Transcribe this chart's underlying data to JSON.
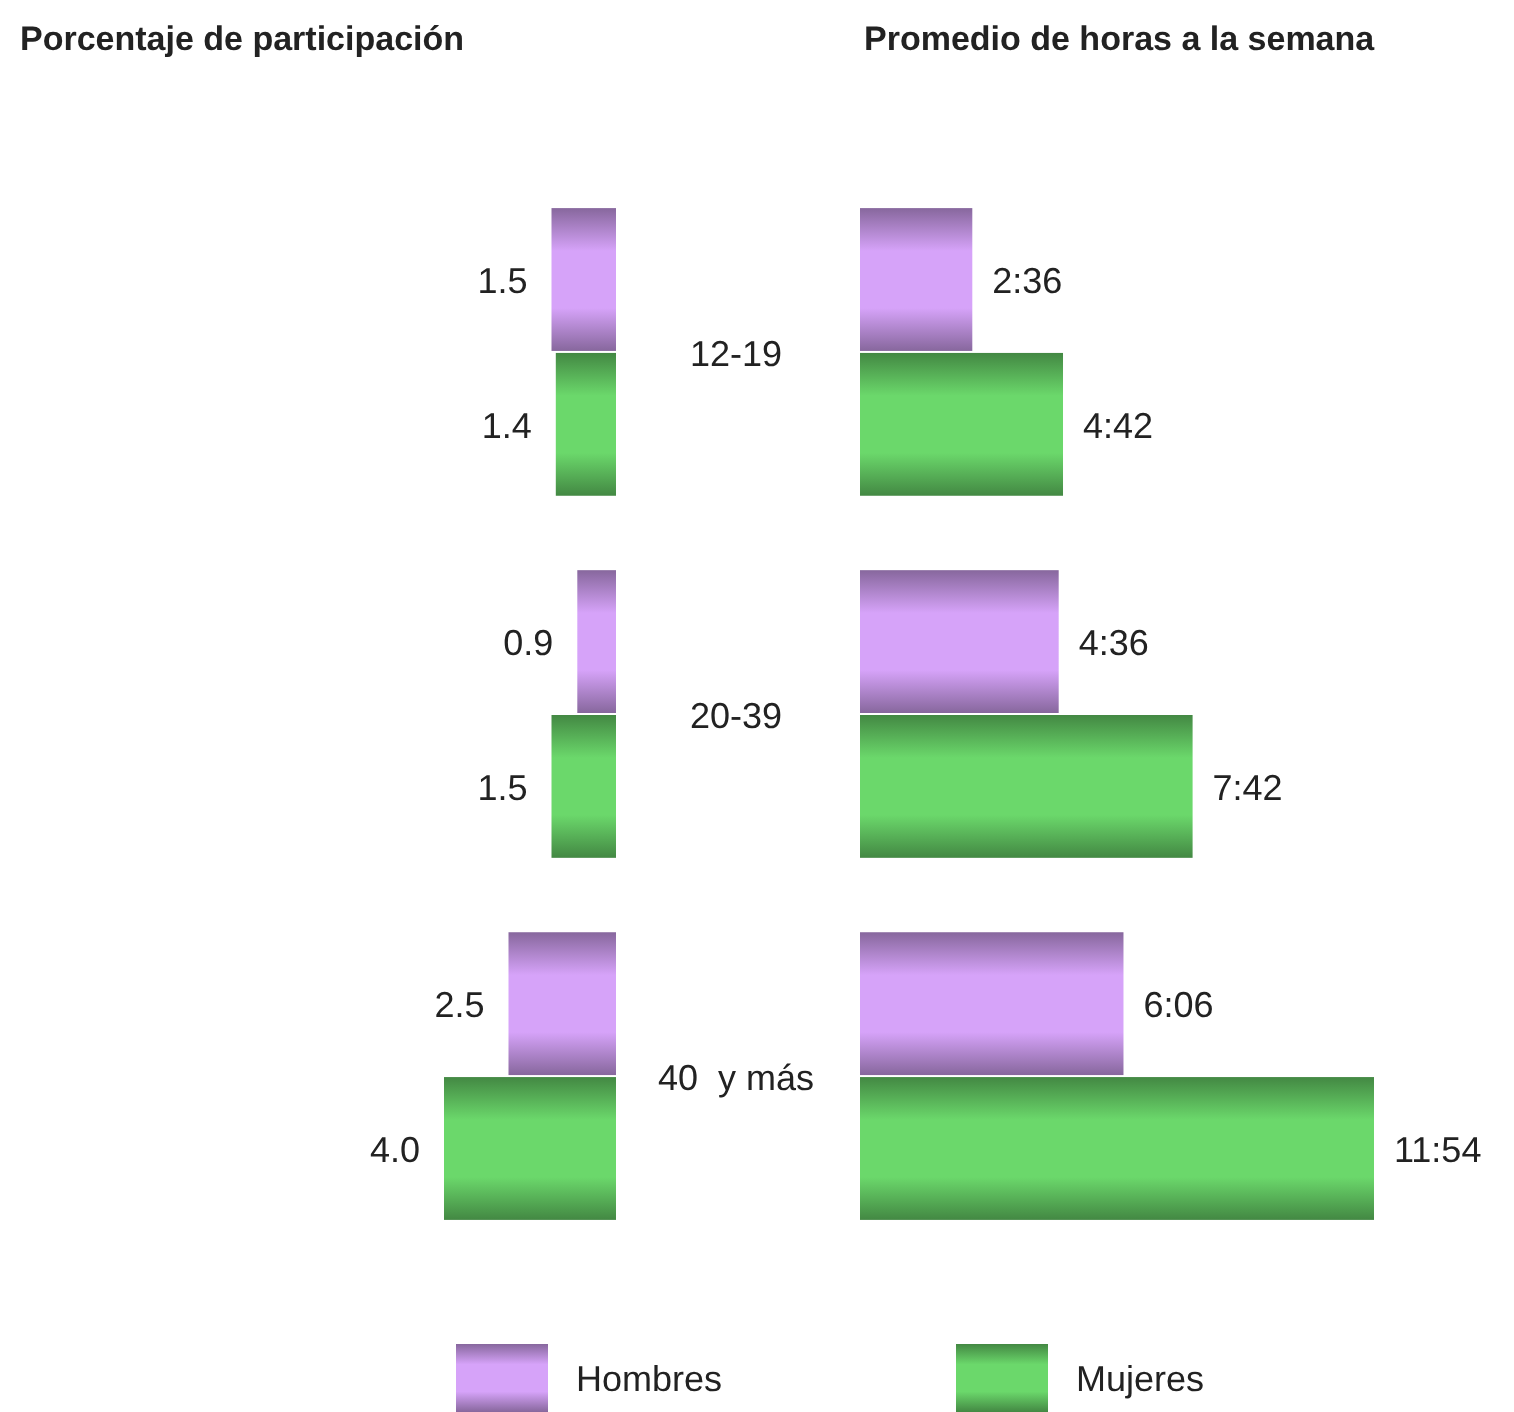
{
  "chart_data": [
    {
      "type": "bar",
      "orientation": "horizontal",
      "title": "Porcentaje de participación",
      "categories": [
        "12-19",
        "20-39",
        "40  y más"
      ],
      "series": [
        {
          "name": "Hombres",
          "color": "#d6a3f9",
          "values": [
            1.5,
            0.9,
            2.5
          ],
          "value_labels": [
            "1.5",
            "0.9",
            "2.5"
          ]
        },
        {
          "name": "Mujeres",
          "color": "#6bd86b",
          "values": [
            1.4,
            1.5,
            4.0
          ],
          "value_labels": [
            "1.4",
            "1.5",
            "4.0"
          ]
        }
      ],
      "legend": "bottom"
    },
    {
      "type": "bar",
      "orientation": "horizontal",
      "title": "Promedio de horas a la semana",
      "categories": [
        null,
        null,
        null
      ],
      "series": [
        {
          "color": "#d6a3f9",
          "values": [
            2.6,
            4.6,
            6.1
          ],
          "value_labels": [
            "2:36",
            "4:36",
            "6:06"
          ]
        },
        {
          "color": "#6bd86b",
          "values": [
            4.7,
            7.7,
            11.9
          ],
          "value_labels": [
            "4:42",
            "7:42",
            "11:54"
          ]
        }
      ]
    }
  ]
}
